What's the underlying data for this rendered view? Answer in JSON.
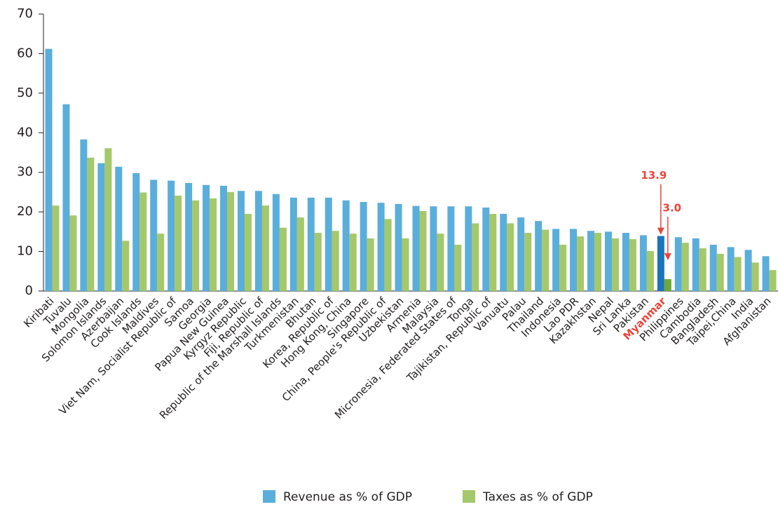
{
  "chart_data": {
    "type": "bar",
    "categories": [
      "Kiribati",
      "Tuvalu",
      "Mongolia",
      "Solomon Islands",
      "Azerbaijan",
      "Cook Islands",
      "Maldives",
      "Viet Nam, Socialist Republic of",
      "Samoa",
      "Georgia",
      "Papua New Guinea",
      "Kyrgyz Republic",
      "Fiji, Republic of",
      "Republic of the Marshall Islands",
      "Turkmenistan",
      "Bhutan",
      "Korea, Republic of",
      "Hong Kong, China",
      "Singapore",
      "China, People's Republic of",
      "Uzbekistan",
      "Armenia",
      "Malaysia",
      "Micronesia, Federated States of",
      "Tonga",
      "Tajikistan, Republic of",
      "Vanuatu",
      "Palau",
      "Thailand",
      "Indonesia",
      "Lao PDR",
      "Kazakhstan",
      "Nepal",
      "Sri Lanka",
      "Pakistan",
      "Myanmar",
      "Philippines",
      "Cambodia",
      "Bangladesh",
      "Taipei,China",
      "India",
      "Afghanistan"
    ],
    "series": [
      {
        "name": "Revenue as % of GDP",
        "color": "#5aaedb",
        "values": [
          61.2,
          47.2,
          38.3,
          32.3,
          31.4,
          29.8,
          28.1,
          27.9,
          27.3,
          26.8,
          26.6,
          25.3,
          25.3,
          24.5,
          23.6,
          23.6,
          23.6,
          22.9,
          22.5,
          22.3,
          22.0,
          21.5,
          21.4,
          21.4,
          21.4,
          21.1,
          19.5,
          18.6,
          17.7,
          15.7,
          15.7,
          15.2,
          15.0,
          14.7,
          14.1,
          13.9,
          13.6,
          13.3,
          11.7,
          11.1,
          10.4,
          8.8
        ]
      },
      {
        "name": "Taxes as % of GDP",
        "color": "#a5c86a",
        "values": [
          21.6,
          19.1,
          33.7,
          36.1,
          12.7,
          24.9,
          14.5,
          24.1,
          22.9,
          23.4,
          25.0,
          19.5,
          21.6,
          16.0,
          18.6,
          14.7,
          15.2,
          14.5,
          13.3,
          18.2,
          13.3,
          20.2,
          14.5,
          11.7,
          17.1,
          19.5,
          17.1,
          14.7,
          15.5,
          11.7,
          13.8,
          14.7,
          13.3,
          13.1,
          10.1,
          3.0,
          12.2,
          10.8,
          9.4,
          8.6,
          7.2,
          5.3
        ]
      }
    ],
    "ylim": [
      0,
      70
    ],
    "yticks": [
      0,
      10,
      20,
      30,
      40,
      50,
      60,
      70
    ],
    "grid": false,
    "legend": "bottom",
    "highlight": {
      "category": "Myanmar",
      "colors": [
        "#1b75b9",
        "#6ea83b"
      ],
      "label_color": "#e8453c",
      "value_labels": [
        "13.9",
        "3.0"
      ]
    }
  }
}
